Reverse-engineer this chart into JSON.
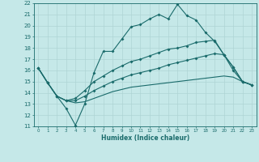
{
  "xlabel": "Humidex (Indice chaleur)",
  "bg_color": "#c5e8e8",
  "grid_color": "#afd4d4",
  "line_color": "#1a6b6b",
  "xlim": [
    -0.5,
    23.5
  ],
  "ylim": [
    11,
    22
  ],
  "xticks": [
    0,
    1,
    2,
    3,
    4,
    5,
    6,
    7,
    8,
    9,
    10,
    11,
    12,
    13,
    14,
    15,
    16,
    17,
    18,
    19,
    20,
    21,
    22,
    23
  ],
  "yticks": [
    11,
    12,
    13,
    14,
    15,
    16,
    17,
    18,
    19,
    20,
    21,
    22
  ],
  "line1_x": [
    0,
    1,
    2,
    3,
    4,
    5,
    6,
    7,
    8,
    9,
    10,
    11,
    12,
    13,
    14,
    15,
    16,
    17,
    18,
    19,
    20,
    21,
    22,
    23
  ],
  "line1_y": [
    16.2,
    14.9,
    13.7,
    12.6,
    11.1,
    13.0,
    15.8,
    17.7,
    17.7,
    18.8,
    19.9,
    20.1,
    20.6,
    21.0,
    20.6,
    21.9,
    20.9,
    20.5,
    19.4,
    18.6,
    17.4,
    16.0,
    15.0,
    14.7
  ],
  "line2_x": [
    0,
    1,
    2,
    3,
    4,
    5,
    6,
    7,
    8,
    9,
    10,
    11,
    12,
    13,
    14,
    15,
    16,
    17,
    18,
    19,
    20,
    21,
    22,
    23
  ],
  "line2_y": [
    16.2,
    14.9,
    13.7,
    13.3,
    13.5,
    14.2,
    15.0,
    15.5,
    16.0,
    16.4,
    16.8,
    17.0,
    17.3,
    17.6,
    17.9,
    18.0,
    18.2,
    18.5,
    18.6,
    18.7,
    17.4,
    16.3,
    15.0,
    14.7
  ],
  "line3_x": [
    0,
    1,
    2,
    3,
    4,
    5,
    6,
    7,
    8,
    9,
    10,
    11,
    12,
    13,
    14,
    15,
    16,
    17,
    18,
    19,
    20,
    21,
    22,
    23
  ],
  "line3_y": [
    16.2,
    14.9,
    13.7,
    13.3,
    13.3,
    13.7,
    14.2,
    14.6,
    15.0,
    15.3,
    15.6,
    15.8,
    16.0,
    16.2,
    16.5,
    16.7,
    16.9,
    17.1,
    17.3,
    17.5,
    17.4,
    16.3,
    15.0,
    14.7
  ],
  "line4_x": [
    0,
    1,
    2,
    3,
    4,
    5,
    6,
    7,
    8,
    9,
    10,
    11,
    12,
    13,
    14,
    15,
    16,
    17,
    18,
    19,
    20,
    21,
    22,
    23
  ],
  "line4_y": [
    16.2,
    14.9,
    13.7,
    13.3,
    13.1,
    13.2,
    13.5,
    13.8,
    14.1,
    14.3,
    14.5,
    14.6,
    14.7,
    14.8,
    14.9,
    15.0,
    15.1,
    15.2,
    15.3,
    15.4,
    15.5,
    15.4,
    15.0,
    14.7
  ]
}
